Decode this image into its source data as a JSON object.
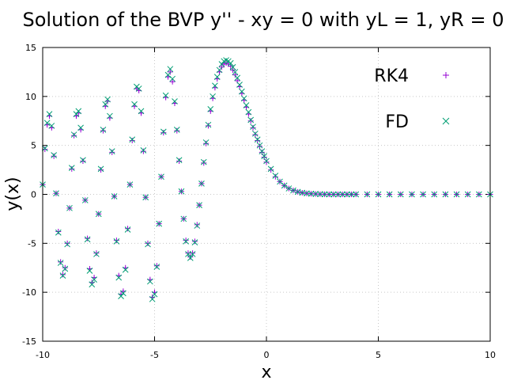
{
  "chart_data": {
    "type": "scatter",
    "title": "Solution of the BVP y'' - xy = 0  with yL = 1, yR = 0",
    "xlabel": "x",
    "ylabel": "y(x)",
    "xlim": [
      -10,
      10
    ],
    "ylim": [
      -15,
      15
    ],
    "xticks": [
      -10,
      -5,
      0,
      5,
      10
    ],
    "yticks": [
      -15,
      -10,
      -5,
      0,
      5,
      10,
      15
    ],
    "grid": true,
    "legend_position": "top-right",
    "series": [
      {
        "name": "RK4",
        "marker": "plus",
        "color": "#9400d3",
        "x": [
          -10.0,
          -9.9,
          -9.8,
          -9.7,
          -9.6,
          -9.5,
          -9.4,
          -9.3,
          -9.2,
          -9.1,
          -9.0,
          -8.9,
          -8.8,
          -8.7,
          -8.6,
          -8.5,
          -8.4,
          -8.3,
          -8.2,
          -8.1,
          -8.0,
          -7.9,
          -7.8,
          -7.7,
          -7.6,
          -7.5,
          -7.4,
          -7.3,
          -7.2,
          -7.1,
          -7.0,
          -6.9,
          -6.8,
          -6.7,
          -6.6,
          -6.5,
          -6.4,
          -6.3,
          -6.2,
          -6.1,
          -6.0,
          -5.9,
          -5.8,
          -5.7,
          -5.6,
          -5.5,
          -5.4,
          -5.3,
          -5.2,
          -5.1,
          -5.0,
          -4.9,
          -4.8,
          -4.7,
          -4.6,
          -4.5,
          -4.4,
          -4.3,
          -4.2,
          -4.1,
          -4.0,
          -3.9,
          -3.8,
          -3.7,
          -3.6,
          -3.5,
          -3.4,
          -3.3,
          -3.2,
          -3.1,
          -3.0,
          -2.9,
          -2.8,
          -2.7,
          -2.6,
          -2.5,
          -2.4,
          -2.3,
          -2.2,
          -2.1,
          -2.0,
          -1.9,
          -1.8,
          -1.7,
          -1.6,
          -1.5,
          -1.4,
          -1.3,
          -1.2,
          -1.1,
          -1.0,
          -0.9,
          -0.8,
          -0.7,
          -0.6,
          -0.5,
          -0.4,
          -0.3,
          -0.2,
          -0.1,
          0.0,
          0.2,
          0.4,
          0.6,
          0.8,
          1.0,
          1.2,
          1.4,
          1.6,
          1.8,
          2.0,
          2.2,
          2.4,
          2.6,
          2.8,
          3.0,
          3.2,
          3.4,
          3.6,
          3.8,
          4.0,
          4.5,
          5.0,
          5.5,
          6.0,
          6.5,
          7.0,
          7.5,
          8.0,
          8.5,
          9.0,
          9.5,
          10.0
        ],
        "y": [
          1.0,
          4.6,
          7.1,
          8.0,
          6.8,
          3.9,
          0.1,
          -3.8,
          -6.9,
          -8.2,
          -7.5,
          -5.0,
          -1.4,
          2.6,
          6.0,
          8.0,
          8.3,
          6.6,
          3.4,
          -0.6,
          -4.5,
          -7.6,
          -9.0,
          -8.5,
          -6.0,
          -2.0,
          2.5,
          6.5,
          9.0,
          9.5,
          7.8,
          4.3,
          -0.2,
          -4.7,
          -8.3,
          -10.2,
          -9.9,
          -7.5,
          -3.5,
          1.0,
          5.5,
          9.0,
          10.8,
          10.6,
          8.3,
          4.4,
          -0.3,
          -5.0,
          -8.7,
          -10.5,
          -10.0,
          -7.3,
          -3.0,
          1.8,
          6.3,
          9.9,
          12.0,
          12.5,
          11.5,
          9.3,
          6.5,
          3.4,
          0.3,
          -2.5,
          -4.7,
          -6.0,
          -6.4,
          -6.0,
          -4.8,
          -3.1,
          -1.1,
          1.1,
          3.2,
          5.2,
          7.0,
          8.5,
          9.8,
          10.9,
          11.8,
          12.5,
          13.0,
          13.3,
          13.4,
          13.3,
          13.1,
          12.7,
          12.2,
          11.6,
          11.0,
          10.3,
          9.6,
          8.9,
          8.2,
          7.5,
          6.8,
          6.1,
          5.5,
          4.9,
          4.3,
          3.8,
          3.3,
          2.5,
          1.8,
          1.3,
          0.9,
          0.6,
          0.4,
          0.25,
          0.16,
          0.1,
          0.06,
          0.04,
          0.02,
          0.01,
          0.0,
          0.0,
          0.0,
          0.0,
          0.0,
          0.0,
          0.0,
          0.0,
          0.0,
          0.0,
          0.0,
          0.0,
          0.0,
          0.0,
          0.0,
          0.0,
          0.0,
          0.0,
          0.0
        ]
      },
      {
        "name": "FD",
        "marker": "cross",
        "color": "#009e73",
        "x": [
          -10.0,
          -9.9,
          -9.8,
          -9.7,
          -9.6,
          -9.5,
          -9.4,
          -9.3,
          -9.2,
          -9.1,
          -9.0,
          -8.9,
          -8.8,
          -8.7,
          -8.6,
          -8.5,
          -8.4,
          -8.3,
          -8.2,
          -8.1,
          -8.0,
          -7.9,
          -7.8,
          -7.7,
          -7.6,
          -7.5,
          -7.4,
          -7.3,
          -7.2,
          -7.1,
          -7.0,
          -6.9,
          -6.8,
          -6.7,
          -6.6,
          -6.5,
          -6.4,
          -6.3,
          -6.2,
          -6.1,
          -6.0,
          -5.9,
          -5.8,
          -5.7,
          -5.6,
          -5.5,
          -5.4,
          -5.3,
          -5.2,
          -5.1,
          -5.0,
          -4.9,
          -4.8,
          -4.7,
          -4.6,
          -4.5,
          -4.4,
          -4.3,
          -4.2,
          -4.1,
          -4.0,
          -3.9,
          -3.8,
          -3.7,
          -3.6,
          -3.5,
          -3.4,
          -3.3,
          -3.2,
          -3.1,
          -3.0,
          -2.9,
          -2.8,
          -2.7,
          -2.6,
          -2.5,
          -2.4,
          -2.3,
          -2.2,
          -2.1,
          -2.0,
          -1.9,
          -1.8,
          -1.7,
          -1.6,
          -1.5,
          -1.4,
          -1.3,
          -1.2,
          -1.1,
          -1.0,
          -0.9,
          -0.8,
          -0.7,
          -0.6,
          -0.5,
          -0.4,
          -0.3,
          -0.2,
          -0.1,
          0.0,
          0.2,
          0.4,
          0.6,
          0.8,
          1.0,
          1.2,
          1.4,
          1.6,
          1.8,
          2.0,
          2.2,
          2.4,
          2.6,
          2.8,
          3.0,
          3.2,
          3.4,
          3.6,
          3.8,
          4.0,
          4.5,
          5.0,
          5.5,
          6.0,
          6.5,
          7.0,
          7.5,
          8.0,
          8.5,
          9.0,
          9.5,
          10.0
        ],
        "y": [
          1.0,
          4.7,
          7.3,
          8.2,
          7.0,
          4.0,
          0.1,
          -3.9,
          -7.0,
          -8.3,
          -7.6,
          -5.1,
          -1.4,
          2.7,
          6.1,
          8.2,
          8.5,
          6.8,
          3.5,
          -0.6,
          -4.6,
          -7.8,
          -9.2,
          -8.7,
          -6.1,
          -2.0,
          2.6,
          6.6,
          9.2,
          9.7,
          8.0,
          4.4,
          -0.2,
          -4.8,
          -8.5,
          -10.4,
          -10.1,
          -7.7,
          -3.6,
          1.0,
          5.6,
          9.2,
          11.0,
          10.8,
          8.5,
          4.5,
          -0.3,
          -5.1,
          -8.9,
          -10.7,
          -10.2,
          -7.4,
          -3.0,
          1.8,
          6.4,
          10.1,
          12.2,
          12.8,
          11.8,
          9.5,
          6.6,
          3.5,
          0.3,
          -2.5,
          -4.8,
          -6.1,
          -6.5,
          -6.1,
          -4.9,
          -3.2,
          -1.1,
          1.1,
          3.3,
          5.3,
          7.1,
          8.7,
          10.0,
          11.1,
          12.0,
          12.7,
          13.3,
          13.6,
          13.7,
          13.6,
          13.4,
          13.0,
          12.5,
          11.9,
          11.2,
          10.5,
          9.8,
          9.1,
          8.4,
          7.6,
          6.9,
          6.2,
          5.6,
          5.0,
          4.4,
          3.9,
          3.4,
          2.6,
          1.9,
          1.3,
          0.9,
          0.6,
          0.4,
          0.25,
          0.16,
          0.1,
          0.06,
          0.04,
          0.02,
          0.01,
          0.0,
          0.0,
          0.0,
          0.0,
          0.0,
          0.0,
          0.0,
          0.0,
          0.0,
          0.0,
          0.0,
          0.0,
          0.0,
          0.0,
          0.0,
          0.0,
          0.0,
          0.0,
          0.0
        ]
      }
    ]
  }
}
